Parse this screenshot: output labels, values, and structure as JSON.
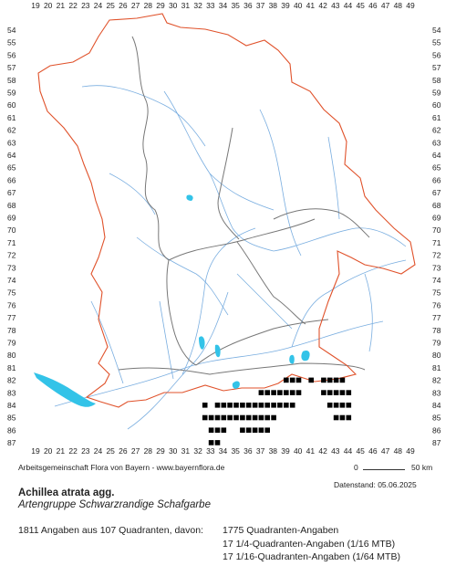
{
  "map": {
    "x_labels": [
      "19",
      "20",
      "21",
      "22",
      "23",
      "24",
      "25",
      "26",
      "27",
      "28",
      "29",
      "30",
      "31",
      "32",
      "33",
      "34",
      "35",
      "36",
      "37",
      "38",
      "39",
      "40",
      "41",
      "42",
      "43",
      "44",
      "45",
      "46",
      "47",
      "48",
      "49"
    ],
    "y_labels": [
      "54",
      "55",
      "56",
      "57",
      "58",
      "59",
      "60",
      "61",
      "62",
      "63",
      "64",
      "65",
      "66",
      "67",
      "68",
      "69",
      "70",
      "71",
      "72",
      "73",
      "74",
      "75",
      "76",
      "77",
      "78",
      "79",
      "80",
      "81",
      "82",
      "83",
      "84",
      "85",
      "86",
      "87"
    ],
    "colors": {
      "border": "#e0522b",
      "region_lines": "#777777",
      "rivers": "#7aaee0",
      "lakes": "#33c3e8",
      "dots": "#000000"
    },
    "occurrences": [
      [
        26,
        84
      ],
      [
        26,
        85
      ],
      [
        27,
        85
      ],
      [
        27,
        86
      ],
      [
        27,
        87
      ],
      [
        28,
        84
      ],
      [
        28,
        85
      ],
      [
        28,
        86
      ],
      [
        28,
        87
      ],
      [
        29,
        84
      ],
      [
        29,
        85
      ],
      [
        29,
        86
      ],
      [
        30,
        84
      ],
      [
        30,
        85
      ],
      [
        31,
        84
      ],
      [
        31,
        85
      ],
      [
        32,
        84
      ],
      [
        32,
        85
      ],
      [
        32,
        86
      ],
      [
        33,
        84
      ],
      [
        33,
        85
      ],
      [
        33,
        86
      ],
      [
        34,
        84
      ],
      [
        34,
        85
      ],
      [
        34,
        86
      ],
      [
        35,
        83
      ],
      [
        35,
        84
      ],
      [
        35,
        85
      ],
      [
        35,
        86
      ],
      [
        36,
        83
      ],
      [
        36,
        84
      ],
      [
        36,
        85
      ],
      [
        36,
        86
      ],
      [
        37,
        83
      ],
      [
        37,
        84
      ],
      [
        37,
        85
      ],
      [
        38,
        83
      ],
      [
        38,
        84
      ],
      [
        39,
        82
      ],
      [
        39,
        83
      ],
      [
        39,
        84
      ],
      [
        40,
        82
      ],
      [
        40,
        83
      ],
      [
        40,
        84
      ],
      [
        41,
        82
      ],
      [
        41,
        83
      ],
      [
        43,
        82
      ],
      [
        45,
        82
      ],
      [
        45,
        83
      ],
      [
        46,
        82
      ],
      [
        46,
        83
      ],
      [
        46,
        84
      ],
      [
        47,
        82
      ],
      [
        47,
        83
      ],
      [
        47,
        84
      ],
      [
        47,
        85
      ],
      [
        48,
        82
      ],
      [
        48,
        83
      ],
      [
        48,
        84
      ],
      [
        48,
        85
      ],
      [
        49,
        83
      ],
      [
        49,
        84
      ],
      [
        49,
        85
      ]
    ]
  },
  "footer": {
    "credit": "Arbeitsgemeinschaft Flora von Bayern - www.bayernflora.de",
    "scale_zero": "0",
    "scale_km": "50 km",
    "datestand": "Datenstand: 05.06.2025",
    "species": "Achillea atrata agg.",
    "species_de": "Artengruppe Schwarzrandige Schafgarbe",
    "summary": "1811 Angaben aus 107 Quadranten, davon:",
    "q1": "1775 Quadranten-Angaben",
    "q2": "17 1/4-Quadranten-Angaben (1/16 MTB)",
    "q3": "17 1/16-Quadranten-Angaben (1/64 MTB)"
  }
}
